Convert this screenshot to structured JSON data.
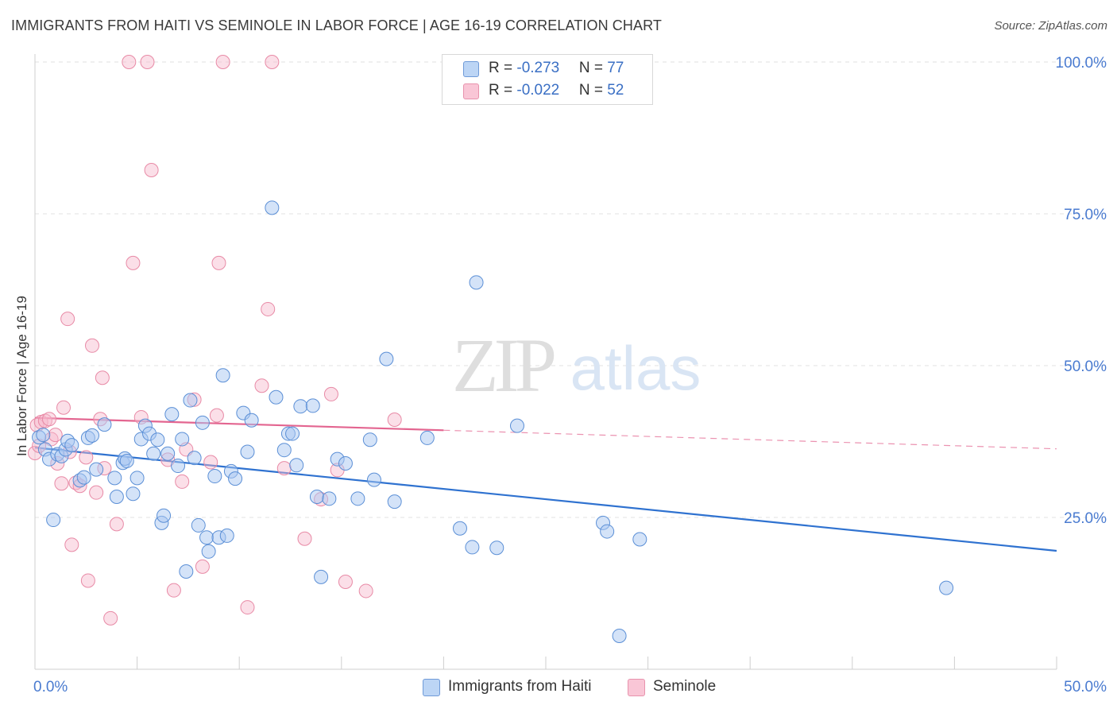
{
  "title": "IMMIGRANTS FROM HAITI VS SEMINOLE IN LABOR FORCE | AGE 16-19 CORRELATION CHART",
  "source": "Source: ZipAtlas.com",
  "legend": {
    "series1": {
      "r_label": "R = ",
      "r_value": "-0.273",
      "n_label": "N = ",
      "n_value": "77"
    },
    "series2": {
      "r_label": "R = ",
      "r_value": "-0.022",
      "n_label": "N = ",
      "n_value": "52"
    }
  },
  "bottom_legend": {
    "series1": "Immigrants from Haiti",
    "series2": "Seminole"
  },
  "colors": {
    "blue_fill": "#aac8f2",
    "blue_stroke": "#5b8fd6",
    "blue_line": "#2f72d0",
    "pink_fill": "#f7b8cc",
    "pink_stroke": "#e88aa6",
    "pink_line": "#e36590",
    "axis_text": "#4a7bd0",
    "grid": "#e2e2e2"
  },
  "watermark": {
    "zip": "ZIP",
    "atlas": "atlas"
  },
  "chart_data": {
    "type": "scatter",
    "title": "IMMIGRANTS FROM HAITI VS SEMINOLE IN LABOR FORCE | AGE 16-19 CORRELATION CHART",
    "xlabel": "",
    "ylabel": "In Labor Force | Age 16-19",
    "xlim": [
      0,
      50
    ],
    "ylim": [
      0,
      100
    ],
    "x_tick_labels": [
      "0.0%",
      "50.0%"
    ],
    "y_tick_labels": [
      "25.0%",
      "50.0%",
      "75.0%",
      "100.0%"
    ],
    "y_ticks": [
      25,
      50,
      75,
      100
    ],
    "series": [
      {
        "name": "Immigrants from Haiti",
        "r": -0.273,
        "n": 77,
        "trend": {
          "x": [
            0,
            50
          ],
          "y": [
            36.5,
            19.5
          ],
          "dashed_from": null
        },
        "points": [
          [
            0.2,
            38.2
          ],
          [
            0.4,
            38.6
          ],
          [
            0.5,
            36.2
          ],
          [
            0.7,
            34.6
          ],
          [
            0.9,
            24.6
          ],
          [
            1.1,
            35.4
          ],
          [
            1.3,
            35.1
          ],
          [
            1.5,
            36.2
          ],
          [
            1.6,
            37.6
          ],
          [
            1.8,
            36.9
          ],
          [
            2.2,
            31.1
          ],
          [
            2.4,
            31.6
          ],
          [
            2.6,
            38.1
          ],
          [
            2.8,
            38.5
          ],
          [
            3.0,
            32.9
          ],
          [
            3.4,
            40.3
          ],
          [
            3.9,
            31.5
          ],
          [
            4.0,
            28.4
          ],
          [
            4.3,
            34.0
          ],
          [
            4.4,
            34.7
          ],
          [
            4.5,
            34.3
          ],
          [
            4.8,
            28.9
          ],
          [
            5.0,
            31.5
          ],
          [
            5.2,
            37.9
          ],
          [
            5.4,
            40.1
          ],
          [
            5.6,
            38.8
          ],
          [
            5.8,
            35.5
          ],
          [
            6.0,
            37.8
          ],
          [
            6.2,
            24.1
          ],
          [
            6.3,
            25.3
          ],
          [
            6.5,
            35.5
          ],
          [
            6.7,
            42.0
          ],
          [
            7.0,
            33.5
          ],
          [
            7.2,
            37.9
          ],
          [
            7.4,
            16.1
          ],
          [
            7.6,
            44.3
          ],
          [
            7.8,
            34.8
          ],
          [
            8.0,
            23.7
          ],
          [
            8.2,
            40.6
          ],
          [
            8.4,
            21.7
          ],
          [
            8.5,
            19.4
          ],
          [
            8.8,
            31.8
          ],
          [
            9.0,
            21.7
          ],
          [
            9.2,
            48.4
          ],
          [
            9.4,
            22.0
          ],
          [
            9.6,
            32.6
          ],
          [
            9.8,
            31.4
          ],
          [
            10.2,
            42.2
          ],
          [
            10.4,
            35.8
          ],
          [
            10.6,
            41.0
          ],
          [
            11.6,
            76.0
          ],
          [
            11.8,
            44.8
          ],
          [
            12.2,
            36.1
          ],
          [
            12.4,
            38.8
          ],
          [
            12.6,
            38.8
          ],
          [
            12.8,
            33.6
          ],
          [
            13.0,
            43.3
          ],
          [
            13.6,
            43.4
          ],
          [
            13.8,
            28.4
          ],
          [
            14.0,
            15.2
          ],
          [
            14.4,
            28.1
          ],
          [
            14.8,
            34.6
          ],
          [
            15.2,
            33.9
          ],
          [
            15.8,
            28.1
          ],
          [
            16.4,
            37.8
          ],
          [
            16.6,
            31.2
          ],
          [
            17.2,
            51.1
          ],
          [
            17.6,
            27.6
          ],
          [
            19.2,
            38.1
          ],
          [
            20.8,
            23.2
          ],
          [
            21.4,
            20.1
          ],
          [
            21.6,
            63.7
          ],
          [
            22.6,
            20.0
          ],
          [
            23.6,
            40.1
          ],
          [
            27.8,
            24.1
          ],
          [
            28.0,
            22.7
          ],
          [
            28.6,
            5.5
          ],
          [
            29.6,
            21.4
          ],
          [
            44.6,
            13.4
          ]
        ]
      },
      {
        "name": "Seminole",
        "r": -0.022,
        "n": 52,
        "trend": {
          "x": [
            0,
            50
          ],
          "y": [
            41.4,
            36.3
          ],
          "dashed_from": 20
        },
        "points": [
          [
            0.1,
            40.2
          ],
          [
            0.3,
            40.7
          ],
          [
            0.5,
            40.9
          ],
          [
            0.7,
            41.2
          ],
          [
            0.8,
            37.9
          ],
          [
            1.0,
            38.6
          ],
          [
            1.1,
            33.9
          ],
          [
            1.3,
            30.6
          ],
          [
            1.4,
            43.1
          ],
          [
            1.6,
            57.7
          ],
          [
            1.7,
            35.8
          ],
          [
            1.8,
            20.5
          ],
          [
            2.0,
            30.7
          ],
          [
            2.2,
            30.2
          ],
          [
            2.5,
            34.9
          ],
          [
            2.6,
            14.6
          ],
          [
            2.8,
            53.3
          ],
          [
            3.0,
            29.1
          ],
          [
            3.2,
            41.2
          ],
          [
            3.3,
            48.0
          ],
          [
            3.4,
            33.1
          ],
          [
            3.7,
            8.4
          ],
          [
            4.0,
            23.9
          ],
          [
            4.6,
            100.0
          ],
          [
            4.8,
            66.9
          ],
          [
            5.2,
            41.5
          ],
          [
            5.5,
            100.0
          ],
          [
            5.7,
            82.2
          ],
          [
            6.5,
            34.5
          ],
          [
            6.8,
            13.0
          ],
          [
            7.2,
            30.9
          ],
          [
            7.4,
            36.2
          ],
          [
            7.8,
            44.4
          ],
          [
            8.2,
            16.9
          ],
          [
            8.6,
            34.1
          ],
          [
            8.9,
            41.8
          ],
          [
            9.0,
            66.9
          ],
          [
            9.2,
            100.0
          ],
          [
            10.4,
            10.2
          ],
          [
            11.1,
            46.7
          ],
          [
            11.4,
            59.3
          ],
          [
            11.6,
            100.0
          ],
          [
            12.2,
            33.1
          ],
          [
            13.2,
            21.5
          ],
          [
            14.0,
            28.0
          ],
          [
            14.5,
            45.3
          ],
          [
            14.8,
            32.8
          ],
          [
            15.2,
            14.4
          ],
          [
            16.2,
            12.9
          ],
          [
            17.6,
            41.1
          ],
          [
            0.0,
            35.6
          ],
          [
            0.2,
            36.8
          ]
        ]
      }
    ]
  }
}
